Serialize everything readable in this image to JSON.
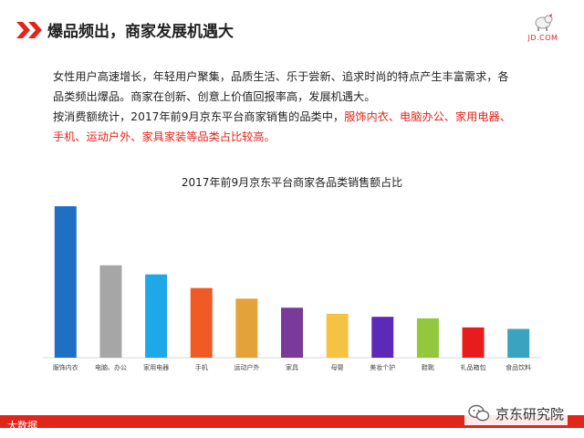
{
  "slide": {
    "title": "爆品频出，商家发展机遇大",
    "brand": "JD.COM",
    "paragraph": {
      "line1": "女性用户高速增长，年轻用户聚集，品质生活、乐于尝新、追求时尚的特点产生丰富需求，各",
      "line2": "品类频出爆品。商家在创新、创意上价值回报率高，发展机遇大。",
      "line3_prefix": "按消费额统计，2017年前9月京东平台商家销售的品类中，",
      "line3_red": "服饰内衣、电脑办公、家用电器、",
      "line4_red": "手机、运动户外、家具家装等品类占比较高。"
    },
    "footer_logo": "大数据",
    "watermark": "京东研究院"
  },
  "colors": {
    "accent": "#e1251b"
  },
  "icons": {
    "title_marker": "double-chevron-icon",
    "brand": "jd-dog-logo-icon",
    "watermark": "wechat-icon"
  },
  "chart_data": {
    "type": "bar",
    "title": "2017年前9月京东平台商家各品类销售额占比",
    "categories": [
      "服饰内衣",
      "电脑、办公",
      "家用电器",
      "手机",
      "运动户外",
      "家具",
      "母婴",
      "美妆个护",
      "鞋靴",
      "礼品箱包",
      "食品饮料"
    ],
    "values": [
      100,
      61,
      55,
      46,
      39,
      33,
      29,
      27,
      26,
      20,
      19
    ],
    "colors": [
      "#1f6fc5",
      "#a6a6a6",
      "#1fa8e8",
      "#f05a24",
      "#e4a23a",
      "#7a3a9a",
      "#f6c243",
      "#5b2ab8",
      "#93c83e",
      "#e81c1c",
      "#3aa3bf"
    ],
    "ylim": [
      0,
      100
    ],
    "grid": false
  }
}
